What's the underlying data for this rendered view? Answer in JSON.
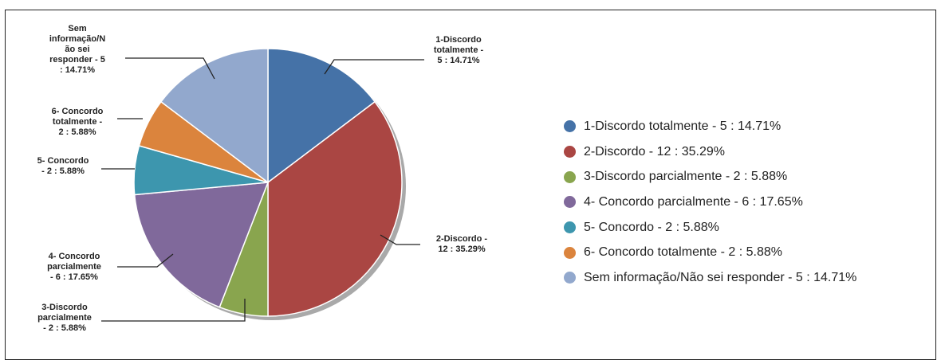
{
  "header_fragments": {
    "left": ")",
    "right": "(…)"
  },
  "chart_data": {
    "type": "pie",
    "title": "",
    "slices": [
      {
        "key": "s1",
        "name": "1-Discordo totalmente",
        "value": 5,
        "percent": 14.71,
        "color": "#4572a7",
        "chart_label": [
          "1-Discordo",
          "totalmente -",
          "5 : 14.71%"
        ],
        "legend_label": "1-Discordo totalmente  - 5 : 14.71%"
      },
      {
        "key": "s2",
        "name": "2-Discordo",
        "value": 12,
        "percent": 35.29,
        "color": "#aa4643",
        "chart_label": [
          "2-Discordo -",
          "12 : 35.29%"
        ],
        "legend_label": "2-Discordo - 12 : 35.29%"
      },
      {
        "key": "s3",
        "name": "3-Discordo parcialmente",
        "value": 2,
        "percent": 5.88,
        "color": "#89a54e",
        "chart_label": [
          "3-Discordo",
          "parcialmente",
          "- 2 : 5.88%"
        ],
        "legend_label": "3-Discordo parcialmente  - 2 : 5.88%"
      },
      {
        "key": "s4",
        "name": "4- Concordo parcialmente",
        "value": 6,
        "percent": 17.65,
        "color": "#80699b",
        "chart_label": [
          "4- Concordo",
          "parcialmente",
          "- 6 : 17.65%"
        ],
        "legend_label": "4- Concordo parcialmente  - 6 : 17.65%"
      },
      {
        "key": "s5",
        "name": "5- Concordo",
        "value": 2,
        "percent": 5.88,
        "color": "#3d96ae",
        "chart_label": [
          "5- Concordo",
          "- 2 : 5.88%"
        ],
        "legend_label": "5- Concordo - 2 : 5.88%"
      },
      {
        "key": "s6",
        "name": "6- Concordo totalmente",
        "value": 2,
        "percent": 5.88,
        "color": "#db843d",
        "chart_label": [
          "6- Concordo",
          "totalmente  -",
          "2 : 5.88%"
        ],
        "legend_label": "6- Concordo totalmente  - 2 : 5.88%"
      },
      {
        "key": "s7",
        "name": "Sem informação/Não sei responder",
        "value": 5,
        "percent": 14.71,
        "color": "#92a8cd",
        "chart_label": [
          "Sem",
          "informação/N",
          "ão sei",
          "responder - 5",
          ": 14.71%"
        ],
        "legend_label": "Sem informação/Não sei responder - 5 : 14.71%"
      }
    ],
    "legend_position": "right",
    "start_angle": "12 o'clock, clockwise"
  }
}
